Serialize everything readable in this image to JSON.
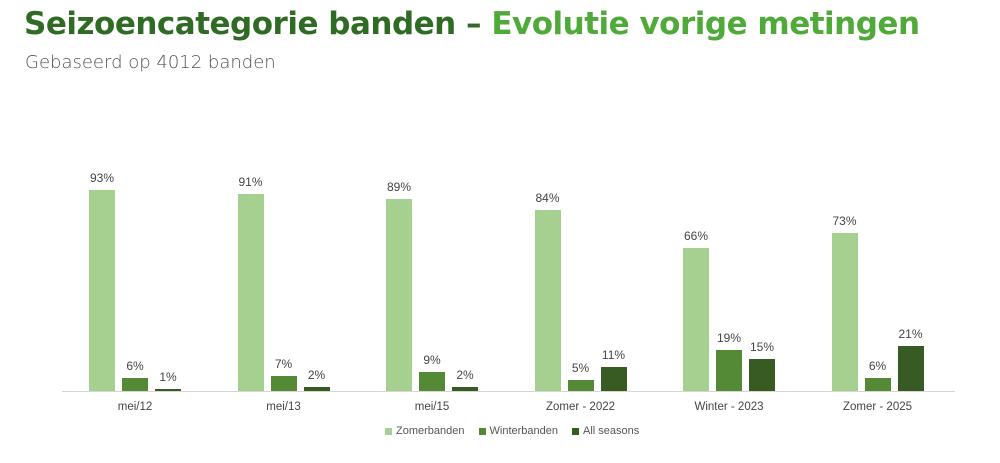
{
  "header": {
    "title_part1": "Seizoencategorie banden – ",
    "title_part2": "Evolutie vorige metingen",
    "subtitle": "Gebaseerd op 4012 banden"
  },
  "colors": {
    "title_dark": "#2f6b24",
    "title_light": "#4faa3a",
    "zomerbanden": "#a6d08f",
    "winterbanden": "#548a35",
    "all_seasons": "#375b22"
  },
  "legend": [
    {
      "label": "Zomerbanden",
      "color": "#a6d08f"
    },
    {
      "label": "Winterbanden",
      "color": "#548a35"
    },
    {
      "label": "All seasons",
      "color": "#375b22"
    }
  ],
  "chart_data": {
    "type": "bar",
    "title": "Seizoencategorie banden – Evolutie vorige metingen",
    "subtitle": "Gebaseerd op 4012 banden",
    "xlabel": "",
    "ylabel": "",
    "ylim": [
      0,
      100
    ],
    "grid": false,
    "legend_position": "bottom",
    "categories": [
      "mei/12",
      "mei/13",
      "mei/15",
      "Zomer - 2022",
      "Winter - 2023",
      "Zomer - 2025"
    ],
    "series": [
      {
        "name": "Zomerbanden",
        "values": [
          93,
          91,
          89,
          84,
          66,
          73
        ]
      },
      {
        "name": "Winterbanden",
        "values": [
          6,
          7,
          9,
          5,
          19,
          6
        ]
      },
      {
        "name": "All seasons",
        "values": [
          1,
          2,
          2,
          11,
          15,
          21
        ]
      }
    ]
  }
}
